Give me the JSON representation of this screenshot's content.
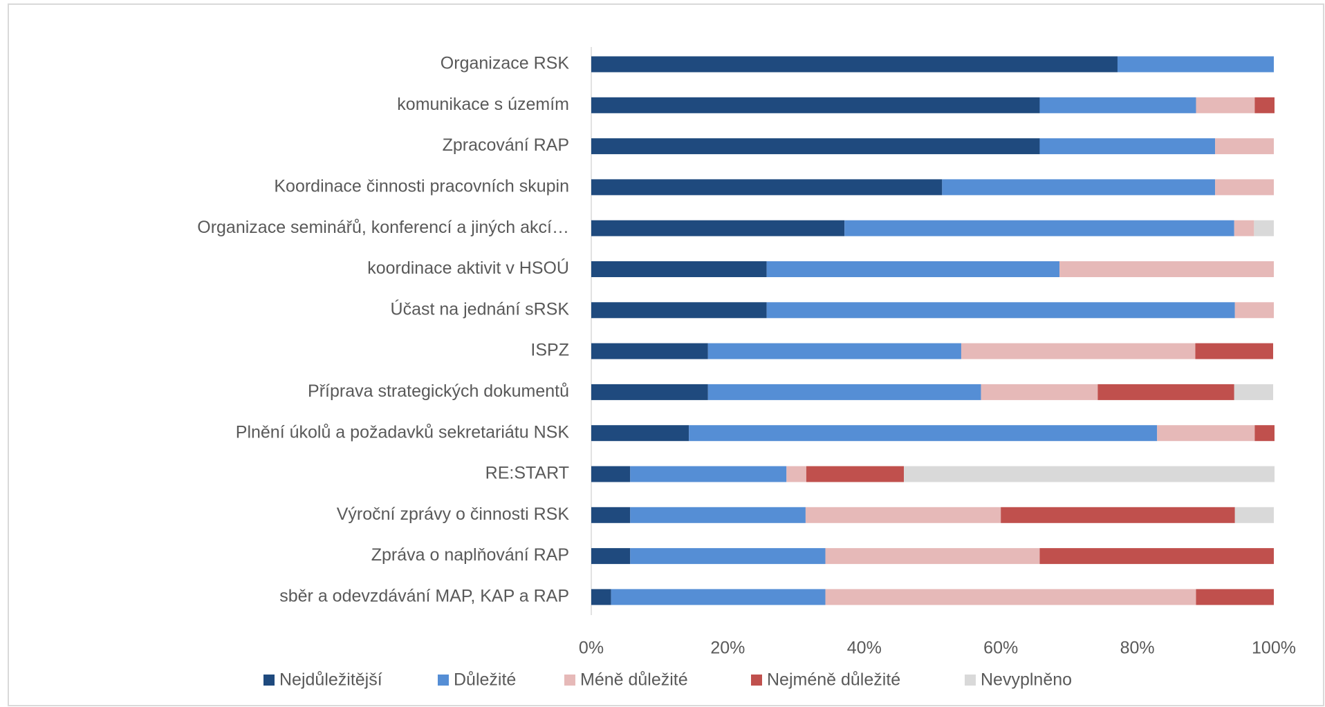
{
  "chart_data": {
    "type": "stacked_barh",
    "categories": [
      "Organizace RSK",
      "komunikace s územím",
      "Zpracování RAP",
      "Koordinace činnosti pracovních skupin",
      "Organizace seminářů, konferencí a jiných akcí…",
      "koordinace aktivit v HSOÚ",
      "Účast na jednání sRSK",
      "ISPZ",
      "Příprava strategických dokumentů",
      "Plnění úkolů a požadavků sekretariátu NSK",
      "RE:START",
      "Výroční zprávy o činnosti RSK",
      "Zpráva o naplňování RAP",
      "sběr a odevzdávání MAP, KAP a RAP"
    ],
    "series": [
      {
        "name": "Nejdůležitější",
        "color": "#1f4a7e",
        "values": [
          77.1,
          65.7,
          65.7,
          51.4,
          37.1,
          25.7,
          25.7,
          17.1,
          17.1,
          14.3,
          5.7,
          5.7,
          5.7,
          2.9
        ]
      },
      {
        "name": "Důležité",
        "color": "#558ed5",
        "values": [
          22.9,
          22.9,
          25.7,
          40.0,
          57.1,
          42.9,
          68.6,
          37.1,
          40.0,
          68.6,
          22.9,
          25.7,
          28.6,
          31.4
        ]
      },
      {
        "name": "Méně důležité",
        "color": "#e6b9b8",
        "values": [
          0,
          8.6,
          8.6,
          8.6,
          2.9,
          31.4,
          5.7,
          34.3,
          17.1,
          14.3,
          2.9,
          28.6,
          31.4,
          54.3
        ]
      },
      {
        "name": "Nejméně důležité",
        "color": "#c0504d",
        "values": [
          0,
          2.9,
          0,
          0,
          0,
          0,
          0,
          11.4,
          20.0,
          2.9,
          14.3,
          34.3,
          34.3,
          11.4
        ]
      },
      {
        "name": "Nevyplněno",
        "color": "#d9d9d9",
        "values": [
          0,
          0,
          0,
          0,
          2.9,
          0,
          0,
          0,
          5.7,
          0,
          54.3,
          5.7,
          0,
          0
        ]
      }
    ],
    "xlim": [
      0,
      100
    ],
    "xticks": [
      {
        "value": 0,
        "label": "0%"
      },
      {
        "value": 20,
        "label": "20%"
      },
      {
        "value": 40,
        "label": "40%"
      },
      {
        "value": 60,
        "label": "60%"
      },
      {
        "value": 80,
        "label": "80%"
      },
      {
        "value": 100,
        "label": "100%"
      }
    ],
    "legend": "bottom"
  }
}
